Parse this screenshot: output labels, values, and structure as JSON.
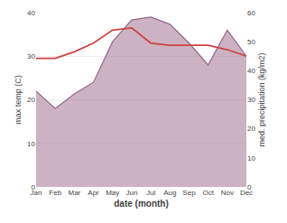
{
  "chart_data": {
    "type": "line",
    "categories": [
      "Jan",
      "Feb",
      "Mar",
      "Apr",
      "May",
      "Jun",
      "Jul",
      "Aug",
      "Sep",
      "Oct",
      "Nov",
      "Dec"
    ],
    "xlabel": "date (month)",
    "ylabel": "max temp (C)",
    "y2label": "med. precipitation (kg/m2)",
    "series": [
      {
        "type": "area",
        "axis": "y2",
        "color": "#996688",
        "values": [
          33.0,
          27.0,
          32.0,
          36.0,
          50.0,
          57.5,
          58.5,
          56.0,
          49.5,
          42.0,
          54.0,
          45.0
        ]
      },
      {
        "type": "line",
        "color": "#cc4444",
        "values": [
          29.5,
          29.5,
          31.0,
          33.0,
          36.0,
          36.5,
          33.0,
          32.5,
          32.5,
          32.5,
          31.5,
          30.0
        ]
      }
    ],
    "ylim": [
      0,
      40
    ],
    "yticks": [
      0,
      10,
      20,
      30,
      40
    ],
    "y2lim": [
      0,
      60
    ],
    "y2ticks": [
      0,
      10,
      20,
      30,
      40,
      50,
      60
    ],
    "grid": true
  }
}
